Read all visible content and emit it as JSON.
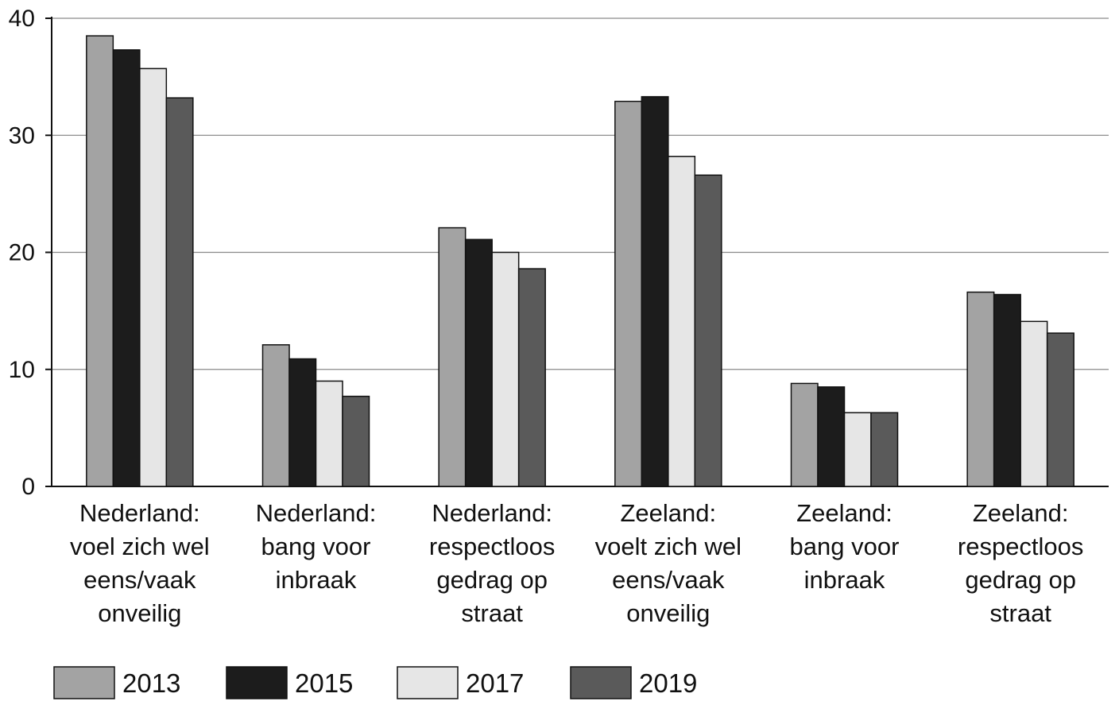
{
  "chart_data": {
    "type": "bar",
    "title": "",
    "xlabel": "",
    "ylabel": "",
    "ylim": [
      0,
      40
    ],
    "yticks": [
      "0",
      "10",
      "20",
      "30",
      "40"
    ],
    "grid": true,
    "legend_position": "bottom",
    "categories": [
      [
        "Nederland:",
        "voel zich wel",
        "eens/vaak",
        "onveilig"
      ],
      [
        "Nederland:",
        "bang voor",
        "inbraak"
      ],
      [
        "Nederland:",
        "respectloos",
        "gedrag op",
        "straat"
      ],
      [
        "Zeeland:",
        "voelt zich wel",
        "eens/vaak",
        "onveilig"
      ],
      [
        "Zeeland:",
        "bang voor",
        "inbraak"
      ],
      [
        "Zeeland:",
        "respectloos",
        "gedrag op",
        "straat"
      ]
    ],
    "series": [
      {
        "name": "2013",
        "color": "#a3a3a3",
        "values": [
          38.5,
          12.1,
          22.1,
          32.9,
          8.8,
          16.6
        ]
      },
      {
        "name": "2015",
        "color": "#1c1c1c",
        "values": [
          37.3,
          10.9,
          21.1,
          33.3,
          8.5,
          16.4
        ]
      },
      {
        "name": "2017",
        "color": "#e6e6e6",
        "values": [
          35.7,
          9.0,
          20.0,
          28.2,
          6.3,
          14.1
        ]
      },
      {
        "name": "2019",
        "color": "#5a5a5a",
        "values": [
          33.2,
          7.7,
          18.6,
          26.6,
          6.3,
          13.1
        ]
      }
    ]
  }
}
